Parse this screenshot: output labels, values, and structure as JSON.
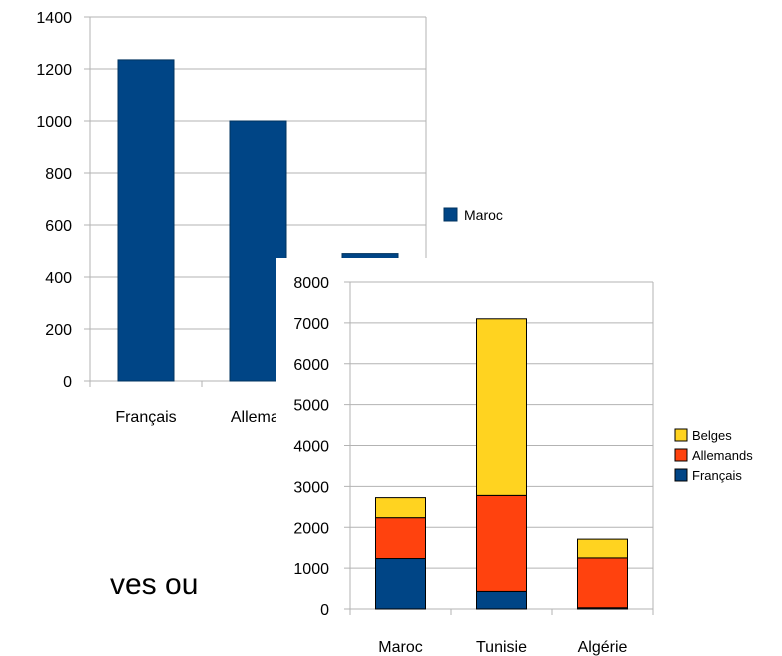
{
  "colors": {
    "francais": "#004586",
    "allemands": "#ff420e",
    "belges": "#ffd320",
    "grid": "#b3b3b3",
    "axis": "#000000"
  },
  "slide_fragment": "ves ou",
  "chart_data": [
    {
      "type": "bar",
      "categories": [
        "Français",
        "Allemands",
        ""
      ],
      "category_labels_visible": [
        "Français",
        "Allemar"
      ],
      "series": [
        {
          "name": "Maroc",
          "values": [
            1235,
            1000,
            490
          ]
        }
      ],
      "ylim": [
        0,
        1400
      ],
      "yticks": [
        "0",
        "200",
        "400",
        "600",
        "800",
        "1000",
        "1200",
        "1400"
      ],
      "grid": true,
      "legend": "right"
    },
    {
      "type": "bar",
      "stacked": true,
      "categories": [
        "Maroc",
        "Tunisie",
        "Algérie"
      ],
      "series": [
        {
          "name": "Français",
          "values": [
            1235,
            430,
            30
          ]
        },
        {
          "name": "Allemands",
          "values": [
            1000,
            2350,
            1220
          ]
        },
        {
          "name": "Belges",
          "values": [
            490,
            4320,
            460
          ]
        }
      ],
      "ylim": [
        0,
        8000
      ],
      "yticks": [
        "0",
        "1000",
        "2000",
        "3000",
        "4000",
        "5000",
        "6000",
        "7000",
        "8000"
      ],
      "grid": true,
      "legend": "right"
    }
  ]
}
